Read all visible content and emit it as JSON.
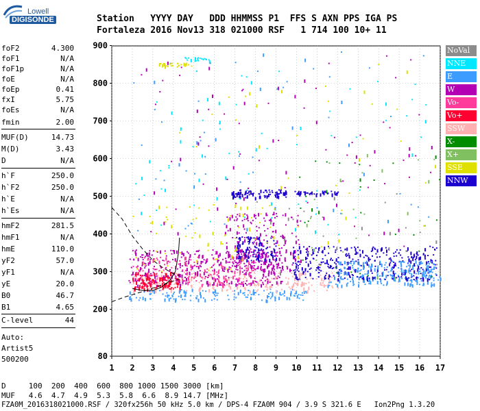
{
  "logo": {
    "top": "Lowell",
    "bottom": "DIGISONDE"
  },
  "header": {
    "row1": "Station   YYYY DAY   DDD HHMMSS P1  FFS S AXN PPS IGA PS",
    "row2": "Fortaleza 2016 Nov13 318 021000 RSF   1 714 100 10+ 11"
  },
  "params": [
    {
      "name": "foF2",
      "value": "4.300"
    },
    {
      "name": "foF1",
      "value": "N/A"
    },
    {
      "name": "foF1p",
      "value": "N/A"
    },
    {
      "name": "foE",
      "value": "N/A"
    },
    {
      "name": "foEp",
      "value": "0.41"
    },
    {
      "name": "fxI",
      "value": "5.75"
    },
    {
      "name": "foEs",
      "value": "N/A"
    },
    {
      "name": "fmin",
      "value": "2.00"
    },
    {
      "name": "MUF(D)",
      "value": "14.73"
    },
    {
      "name": "M(D)",
      "value": "3.43"
    },
    {
      "name": "D",
      "value": "N/A"
    },
    {
      "name": "h`F",
      "value": "250.0"
    },
    {
      "name": "h`F2",
      "value": "250.0"
    },
    {
      "name": "h`E",
      "value": "N/A"
    },
    {
      "name": "h`Es",
      "value": "N/A"
    },
    {
      "name": "hmF2",
      "value": "281.5"
    },
    {
      "name": "hmF1",
      "value": "N/A"
    },
    {
      "name": "hmE",
      "value": "110.0"
    },
    {
      "name": "yF2",
      "value": "57.0"
    },
    {
      "name": "yF1",
      "value": "N/A"
    },
    {
      "name": "yE",
      "value": "20.0"
    },
    {
      "name": "B0",
      "value": "46.7"
    },
    {
      "name": "B1",
      "value": "4.65"
    }
  ],
  "clevel": {
    "name": "C-level",
    "value": "44"
  },
  "auto": [
    "Auto:",
    "Artist5",
    "500200"
  ],
  "legend": [
    {
      "label": "NoVal",
      "color": "#8c8c8c"
    },
    {
      "label": "NNE",
      "color": "#00e8ff"
    },
    {
      "label": "E",
      "color": "#3c9cff"
    },
    {
      "label": "W",
      "color": "#b400b4"
    },
    {
      "label": "Vo-",
      "color": "#ff3c9c"
    },
    {
      "label": "Vo+",
      "color": "#ff0030"
    },
    {
      "label": "SSW",
      "color": "#ffb0b0"
    },
    {
      "label": "X-",
      "color": "#008c00"
    },
    {
      "label": "X+",
      "color": "#80c060"
    },
    {
      "label": "SSE",
      "color": "#e0e000"
    },
    {
      "label": "NNW",
      "color": "#1c00d0"
    }
  ],
  "footer": {
    "row1": "D     100  200  400  600  800 1000 1500 3000 [km]",
    "row2": "MUF   4.6  4.7  4.9  5.3  5.8  6.6  8.9 14.7 [MHz]",
    "row3": "FZA0M_2016318021000.RSF / 320fx256h 50 kHz 5.0 km / DPS-4 FZA0M 904 / 3.9 S 321.6 E   Ion2Png 1.3.20"
  },
  "chart_data": {
    "type": "scatter",
    "xlim": [
      1,
      17
    ],
    "ylim": [
      80,
      900
    ],
    "xticks": [
      "1",
      "2",
      "3",
      "4",
      "5",
      "6",
      "7",
      "8",
      "9",
      "10",
      "11",
      "12",
      "13",
      "14",
      "15",
      "16",
      "17"
    ],
    "yticks": [
      "80",
      "200",
      "300",
      "400",
      "500",
      "600",
      "700",
      "800",
      "900"
    ],
    "bands": [
      {
        "series": "E",
        "x": [
          1.8,
          10.5
        ],
        "y": [
          225,
          255
        ],
        "n": 160
      },
      {
        "series": "E",
        "x": [
          11.5,
          17
        ],
        "y": [
          265,
          290
        ],
        "n": 110
      },
      {
        "series": "SSW",
        "x": [
          2,
          12
        ],
        "y": [
          250,
          300
        ],
        "n": 240
      },
      {
        "series": "W",
        "x": [
          1.8,
          9.3
        ],
        "y": [
          265,
          360
        ],
        "n": 380
      },
      {
        "series": "W",
        "x": [
          6.5,
          10.2
        ],
        "y": [
          300,
          460
        ],
        "n": 180
      },
      {
        "series": "Vo-",
        "x": [
          2,
          8
        ],
        "y": [
          265,
          340
        ],
        "n": 160
      },
      {
        "series": "Vo+",
        "x": [
          2,
          4.3
        ],
        "y": [
          255,
          300
        ],
        "n": 120
      },
      {
        "series": "NNW",
        "x": [
          9.8,
          16.8
        ],
        "y": [
          280,
          370
        ],
        "n": 340
      },
      {
        "series": "NNW",
        "x": [
          6.8,
          9.5
        ],
        "y": [
          497,
          520
        ],
        "n": 90
      },
      {
        "series": "NNW",
        "x": [
          9.9,
          12
        ],
        "y": [
          505,
          515
        ],
        "n": 40
      },
      {
        "series": "NNW",
        "x": [
          7,
          9
        ],
        "y": [
          330,
          395
        ],
        "n": 100
      },
      {
        "series": "E",
        "x": [
          12,
          16.8
        ],
        "y": [
          290,
          330
        ],
        "n": 140
      },
      {
        "series": "W",
        "x": [
          2,
          16.8
        ],
        "y": [
          360,
          880
        ],
        "n": 90
      },
      {
        "series": "NNE",
        "x": [
          2,
          16.5
        ],
        "y": [
          400,
          880
        ],
        "n": 70
      },
      {
        "series": "E",
        "x": [
          2,
          16.8
        ],
        "y": [
          400,
          890
        ],
        "n": 60
      },
      {
        "series": "SSE",
        "x": [
          2,
          16.8
        ],
        "y": [
          300,
          870
        ],
        "n": 50
      },
      {
        "series": "X-",
        "x": [
          10,
          17
        ],
        "y": [
          280,
          620
        ],
        "n": 30
      },
      {
        "series": "X+",
        "x": [
          10,
          17
        ],
        "y": [
          280,
          620
        ],
        "n": 25
      },
      {
        "series": "NoVal",
        "x": [
          8,
          17
        ],
        "y": [
          280,
          520
        ],
        "n": 25
      },
      {
        "series": "SSE",
        "x": [
          3.2,
          4.9
        ],
        "y": [
          845,
          855
        ],
        "n": 30
      },
      {
        "series": "NNE",
        "x": [
          4.5,
          6
        ],
        "y": [
          860,
          870
        ],
        "n": 20
      },
      {
        "series": "SSE",
        "x": [
          2,
          9
        ],
        "y": [
          300,
          480
        ],
        "n": 60
      }
    ],
    "traces": [
      {
        "name": "dashed",
        "style": "dashed",
        "x": [
          1.0,
          1.5,
          2.0,
          2.5,
          3.0,
          3.5,
          4.0,
          4.3
        ],
        "y": [
          470,
          440,
          395,
          360,
          330,
          310,
          295,
          290
        ]
      },
      {
        "name": "dashed2",
        "style": "dashed",
        "x": [
          1.0,
          1.6,
          2.2,
          2.8,
          3.3,
          3.8,
          4.3
        ],
        "y": [
          220,
          232,
          242,
          252,
          262,
          272,
          280
        ]
      },
      {
        "name": "trace",
        "style": "solid",
        "x": [
          2.0,
          2.5,
          3.0,
          3.4,
          3.8,
          4.1,
          4.25,
          4.3
        ],
        "y": [
          255,
          250,
          250,
          258,
          275,
          300,
          350,
          390
        ]
      }
    ]
  }
}
